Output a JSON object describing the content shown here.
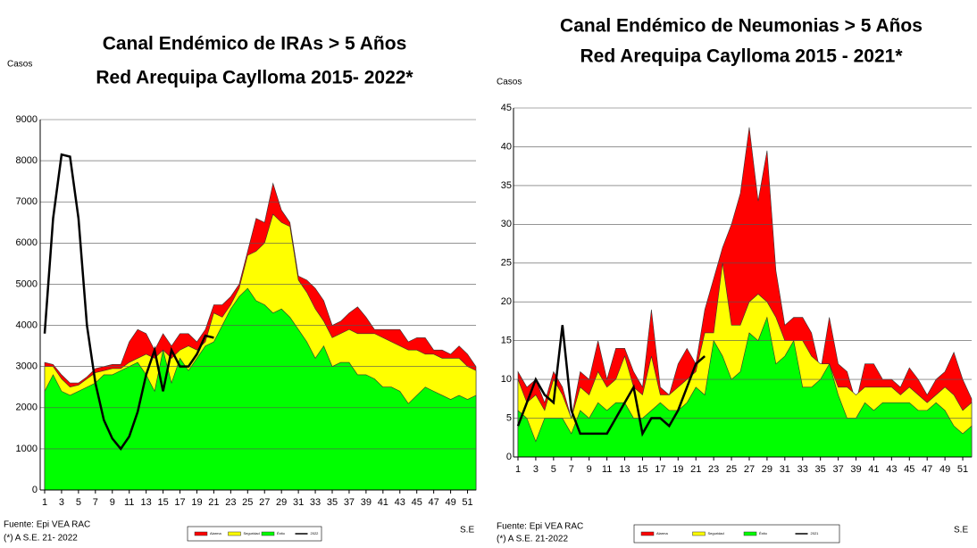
{
  "chart_data": [
    {
      "type": "area",
      "title": "Canal Endémico de IRAs > 5 Años",
      "subtitle": "Red Arequipa Caylloma 2015- 2022*",
      "y_label": "Casos",
      "x_label": "S.E",
      "source": "Fuente: Epi VEA RAC",
      "note": "(*) A S.E. 21- 2022",
      "x": [
        1,
        2,
        3,
        4,
        5,
        6,
        7,
        8,
        9,
        10,
        11,
        12,
        13,
        14,
        15,
        16,
        17,
        18,
        19,
        20,
        21,
        22,
        23,
        24,
        25,
        26,
        27,
        28,
        29,
        30,
        31,
        32,
        33,
        34,
        35,
        36,
        37,
        38,
        39,
        40,
        41,
        42,
        43,
        44,
        45,
        46,
        47,
        48,
        49,
        50,
        51,
        52
      ],
      "xlim": [
        1,
        52
      ],
      "xticks": [
        1,
        3,
        5,
        7,
        9,
        11,
        13,
        15,
        17,
        19,
        21,
        23,
        25,
        27,
        29,
        31,
        33,
        35,
        37,
        39,
        41,
        43,
        45,
        47,
        49,
        51
      ],
      "ylim": [
        0,
        9000
      ],
      "yticks": [
        0,
        1000,
        2000,
        3000,
        4000,
        5000,
        6000,
        7000,
        8000,
        9000
      ],
      "grid": true,
      "series": [
        {
          "name": "Alarma",
          "color": "#ff0000",
          "type": "area",
          "values": [
            3100,
            3050,
            2800,
            2600,
            2600,
            2750,
            2950,
            3000,
            3050,
            3050,
            3600,
            3900,
            3800,
            3400,
            3800,
            3500,
            3800,
            3800,
            3600,
            3900,
            4500,
            4500,
            4700,
            5000,
            5800,
            6600,
            6500,
            7450,
            6800,
            6500,
            5200,
            5100,
            4900,
            4600,
            4000,
            4100,
            4300,
            4450,
            4200,
            3900,
            3900,
            3900,
            3900,
            3600,
            3700,
            3700,
            3400,
            3400,
            3300,
            3500,
            3300,
            3000
          ]
        },
        {
          "name": "Seguridad",
          "color": "#ffff00",
          "type": "area",
          "values": [
            3000,
            3000,
            2700,
            2500,
            2550,
            2700,
            2850,
            2900,
            2950,
            2950,
            3100,
            3200,
            3300,
            3200,
            3400,
            3200,
            3400,
            3500,
            3400,
            3600,
            4300,
            4200,
            4500,
            4900,
            5700,
            5800,
            6000,
            6700,
            6500,
            6400,
            5100,
            4800,
            4400,
            4100,
            3700,
            3800,
            3900,
            3800,
            3800,
            3800,
            3700,
            3600,
            3500,
            3400,
            3400,
            3300,
            3300,
            3200,
            3200,
            3200,
            3000,
            2900
          ]
        },
        {
          "name": "Éxito",
          "color": "#00ff00",
          "type": "area",
          "values": [
            2400,
            2800,
            2400,
            2300,
            2400,
            2500,
            2600,
            2800,
            2800,
            2900,
            3000,
            3100,
            2800,
            2400,
            3400,
            2600,
            3200,
            2900,
            3200,
            3500,
            3600,
            4000,
            4400,
            4700,
            4900,
            4600,
            4500,
            4300,
            4400,
            4200,
            3900,
            3600,
            3200,
            3500,
            3000,
            3100,
            3100,
            2800,
            2800,
            2700,
            2500,
            2500,
            2400,
            2100,
            2300,
            2500,
            2400,
            2300,
            2200,
            2300,
            2200,
            2300
          ]
        },
        {
          "name": "2022",
          "color": "#000000",
          "type": "line",
          "values": [
            3800,
            6600,
            8150,
            8100,
            6600,
            4000,
            2600,
            1700,
            1250,
            1000,
            1300,
            1900,
            2800,
            3400,
            2400,
            3400,
            3000,
            3000,
            3300,
            3750,
            3700,
            null,
            null,
            null,
            null,
            null,
            null,
            null,
            null,
            null,
            null,
            null,
            null,
            null,
            null,
            null,
            null,
            null,
            null,
            null,
            null,
            null,
            null,
            null,
            null,
            null,
            null,
            null,
            null,
            null,
            null,
            null
          ]
        }
      ]
    },
    {
      "type": "area",
      "title": "Canal Endémico de Neumonias > 5 Años",
      "subtitle": "Red Arequipa Caylloma 2015 - 2021*",
      "y_label": "Casos",
      "x_label": "S.E",
      "source": "Fuente: Epi VEA RAC",
      "note": "(*) A S.E. 21-2022",
      "x": [
        1,
        2,
        3,
        4,
        5,
        6,
        7,
        8,
        9,
        10,
        11,
        12,
        13,
        14,
        15,
        16,
        17,
        18,
        19,
        20,
        21,
        22,
        23,
        24,
        25,
        26,
        27,
        28,
        29,
        30,
        31,
        32,
        33,
        34,
        35,
        36,
        37,
        38,
        39,
        40,
        41,
        42,
        43,
        44,
        45,
        46,
        47,
        48,
        49,
        50,
        51,
        52
      ],
      "xlim": [
        1,
        52
      ],
      "xticks": [
        1,
        3,
        5,
        7,
        9,
        11,
        13,
        15,
        17,
        19,
        21,
        23,
        25,
        27,
        29,
        31,
        33,
        35,
        37,
        39,
        41,
        43,
        45,
        47,
        49,
        51
      ],
      "ylim": [
        0,
        45
      ],
      "yticks": [
        0,
        5,
        10,
        15,
        20,
        25,
        30,
        35,
        40,
        45
      ],
      "grid": true,
      "series": [
        {
          "name": "Alarma",
          "color": "#ff0000",
          "type": "area",
          "values": [
            11,
            9,
            10,
            7,
            11,
            9,
            5,
            11,
            10,
            15,
            10,
            14,
            14,
            11,
            9,
            19,
            9,
            8,
            12,
            14,
            12,
            19,
            23,
            27,
            30,
            34,
            42.5,
            33,
            39.5,
            24,
            17,
            18,
            18,
            16,
            11,
            18,
            12,
            11,
            7,
            12,
            12,
            10,
            10,
            9,
            11.5,
            10,
            8,
            10,
            11,
            13.5,
            10,
            7.5
          ]
        },
        {
          "name": "Seguridad",
          "color": "#ffff00",
          "type": "area",
          "values": [
            10,
            7,
            8,
            6,
            10,
            8,
            5,
            9,
            8,
            11,
            9,
            10,
            13,
            9,
            8,
            13,
            8,
            8,
            9,
            10,
            11,
            16,
            16,
            25,
            17,
            17,
            20,
            21,
            20,
            18,
            15,
            15,
            15,
            13,
            12,
            12,
            9,
            9,
            8,
            9,
            9,
            9,
            9,
            8,
            9,
            8,
            7,
            8,
            9,
            8,
            6,
            7
          ]
        },
        {
          "name": "Éxito",
          "color": "#00ff00",
          "type": "area",
          "values": [
            6,
            5,
            2,
            5,
            5,
            5,
            3,
            6,
            5,
            7,
            6,
            7,
            7,
            5,
            5,
            6,
            7,
            6,
            6,
            7,
            9,
            8,
            15,
            13,
            10,
            11,
            16,
            15,
            18,
            12,
            13,
            15,
            9,
            9,
            10,
            12,
            8,
            5,
            5,
            7,
            6,
            7,
            7,
            7,
            7,
            6,
            6,
            7,
            6,
            4,
            3,
            4
          ]
        },
        {
          "name": "2021",
          "color": "#000000",
          "type": "line",
          "values": [
            4,
            7,
            10,
            8,
            7,
            17,
            6,
            3,
            3,
            3,
            3,
            5,
            7,
            9,
            3,
            5,
            5,
            4,
            6,
            9,
            12,
            13,
            null,
            null,
            null,
            null,
            null,
            null,
            null,
            null,
            null,
            null,
            null,
            null,
            null,
            null,
            null,
            null,
            null,
            null,
            null,
            null,
            null,
            null,
            null,
            null,
            null,
            null,
            null,
            null,
            null,
            null
          ]
        }
      ]
    }
  ]
}
